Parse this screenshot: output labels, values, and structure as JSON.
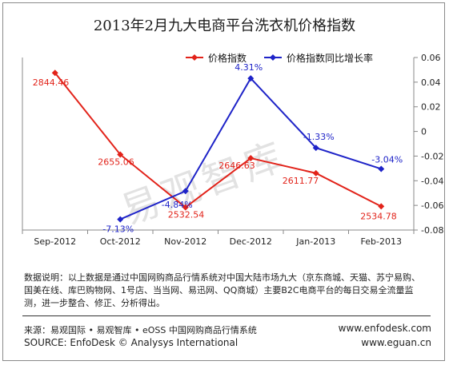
{
  "title": "2013年2月九大电商平台洗衣机价格指数",
  "chart_data": {
    "type": "line",
    "categories": [
      "Sep-2012",
      "Oct-2012",
      "Nov-2012",
      "Dec-2012",
      "Jan-2013",
      "Feb-2013"
    ],
    "series": [
      {
        "name": "价格指数",
        "axis": "left",
        "color": "#e2231a",
        "values": [
          2844.46,
          2655.06,
          2532.54,
          2646.63,
          2611.77,
          2534.78
        ],
        "labels": [
          "2844.46",
          "2655.06",
          "2532.54",
          "2646.63",
          "2611.77",
          "2534.78"
        ]
      },
      {
        "name": "价格指数同比增长率",
        "axis": "right",
        "color": "#1f24c8",
        "values": [
          null,
          -0.0713,
          -0.0484,
          0.0431,
          -0.0133,
          -0.0304
        ],
        "labels": [
          "",
          "-7.13%",
          "-4.84%",
          "4.31%",
          "-1.33%",
          "-3.04%"
        ]
      }
    ],
    "y_left": {
      "min": 2480,
      "max": 2880,
      "tick_labels": []
    },
    "y_right": {
      "min": -0.08,
      "max": 0.06,
      "ticks": [
        0.06,
        0.04,
        0.02,
        0,
        -0.02,
        -0.04,
        -0.06,
        -0.08
      ],
      "tick_labels": [
        "0.06",
        "0.04",
        "0.02",
        "0",
        "-0.02",
        "-0.04",
        "-0.06",
        "-0.08"
      ]
    },
    "grid": false,
    "legend_position": "top-center"
  },
  "watermark": "易观智库",
  "footnote": "数据说明：以上数据是通过中国网购商品行情系统对中国大陆市场九大（京东商城、天猫、苏宁易购、国美在线、库巴购物网、1号店、当当网、易迅网、QQ商城）主要B2C电商平台的每日交易全流量监测，进一步整合、修正、分析得出。",
  "source_cn": "来源：易观国际 • 易观智库 • eOSS 中国网购商品行情系统",
  "source_en": "SOURCE: EnfoDesk © Analysys International",
  "url_1": "www.enfodesk.com",
  "url_2": "www.eguan.cn"
}
